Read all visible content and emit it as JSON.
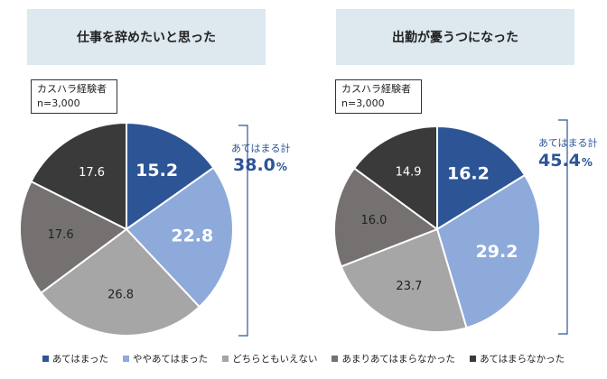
{
  "chart_data": [
    {
      "type": "pie",
      "title": "仕事を辞めたいと思った",
      "sample_label": "カスハラ経験者",
      "sample_size": "n=3,000",
      "total_label": "あてはまる計",
      "total_value": "38.0",
      "total_unit": "%",
      "categories": [
        "あてはまった",
        "ややあてはまった",
        "どちらともいえない",
        "あまりあてはまらなかった",
        "あてはまらなかった"
      ],
      "values": [
        15.2,
        22.8,
        26.8,
        17.6,
        17.6
      ]
    },
    {
      "type": "pie",
      "title": "出勤が憂うつになった",
      "sample_label": "カスハラ経験者",
      "sample_size": "n=3,000",
      "total_label": "あてはまる計",
      "total_value": "45.4",
      "total_unit": "%",
      "categories": [
        "あてはまった",
        "ややあてはまった",
        "どちらともいえない",
        "あまりあてはまらなかった",
        "あてはまらなかった"
      ],
      "values": [
        16.2,
        29.2,
        23.7,
        16.0,
        14.9
      ]
    }
  ],
  "legend": [
    {
      "label": "あてはまった",
      "color": "#2d5596"
    },
    {
      "label": "ややあてはまった",
      "color": "#8eaadb"
    },
    {
      "label": "どちらともいえない",
      "color": "#a6a6a6"
    },
    {
      "label": "あまりあてはまらなかった",
      "color": "#757171"
    },
    {
      "label": "あてはまらなかった",
      "color": "#3a3a3a"
    }
  ],
  "colors": {
    "accent": "#2d5596",
    "title_bg": "#dde8ef",
    "label_light": "#ffffff",
    "label_dark": "#222222"
  }
}
